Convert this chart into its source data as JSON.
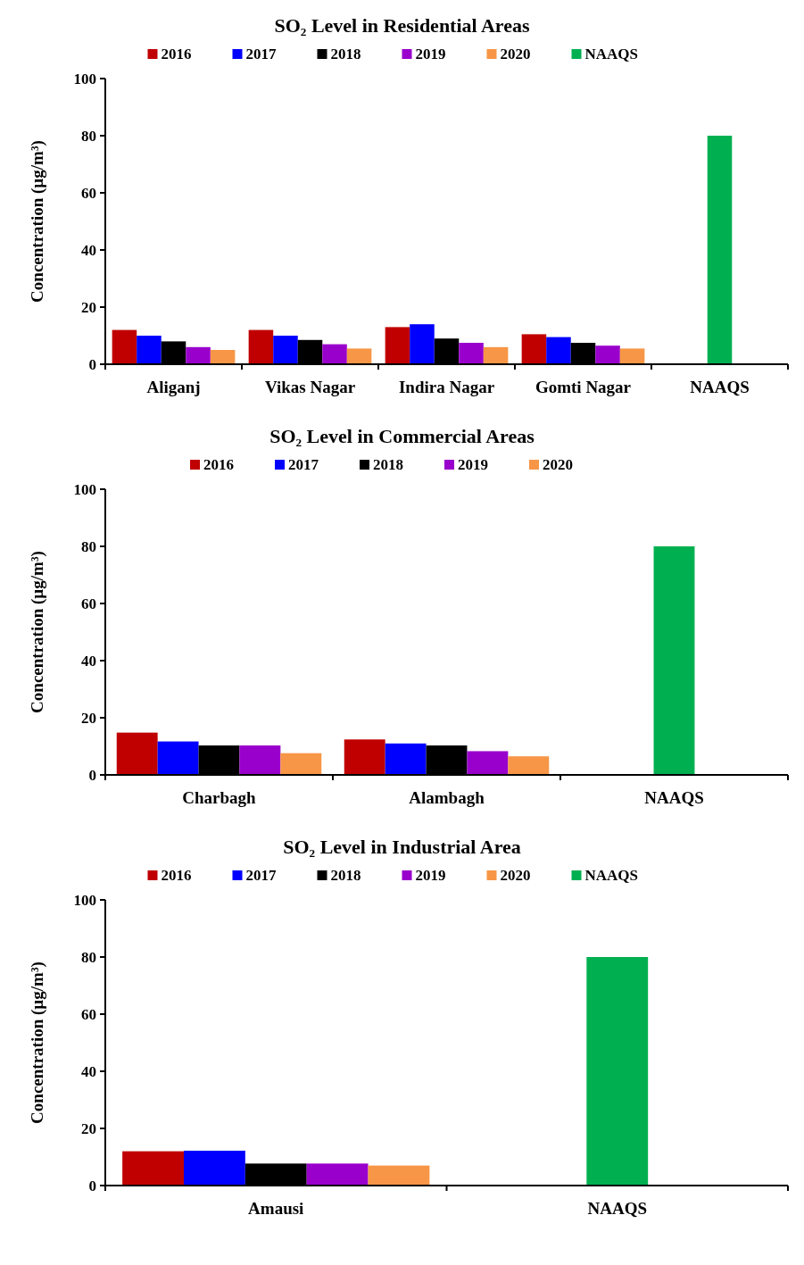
{
  "chart_data": [
    {
      "type": "bar",
      "title": "SO₂ Level in Residential Areas",
      "ylabel": "Concentration (µg/m³)",
      "categories": [
        "Aliganj",
        "Vikas Nagar",
        "Indira Nagar",
        "Gomti Nagar",
        "NAAQS"
      ],
      "ylim": [
        0,
        100
      ],
      "yticks": [
        0,
        20,
        40,
        60,
        80,
        100
      ],
      "legend": "top",
      "grid": false,
      "series": [
        {
          "name": "2016",
          "color": "#c00000",
          "values": [
            12,
            12,
            13,
            10.5,
            null
          ]
        },
        {
          "name": "2017",
          "color": "#0000ff",
          "values": [
            10,
            10,
            14,
            9.5,
            null
          ]
        },
        {
          "name": "2018",
          "color": "#000000",
          "values": [
            8,
            8.5,
            9,
            7.5,
            null
          ]
        },
        {
          "name": "2019",
          "color": "#9900cc",
          "values": [
            6,
            7,
            7.5,
            6.5,
            null
          ]
        },
        {
          "name": "2020",
          "color": "#f79646",
          "values": [
            5,
            5.5,
            6,
            5.5,
            null
          ]
        },
        {
          "name": "NAAQS",
          "color": "#00b050",
          "values": [
            null,
            null,
            null,
            null,
            80
          ]
        }
      ]
    },
    {
      "type": "bar",
      "title": "SO₂ Level in Commercial Areas",
      "ylabel": "Concentration (µg/m³)",
      "categories": [
        "Charbagh",
        "Alambagh",
        "NAAQS"
      ],
      "ylim": [
        0,
        100
      ],
      "yticks": [
        0,
        20,
        40,
        60,
        80,
        100
      ],
      "legend": "top",
      "grid": false,
      "series": [
        {
          "name": "2016",
          "color": "#c00000",
          "values": [
            14.8,
            12.4,
            null
          ]
        },
        {
          "name": "2017",
          "color": "#0000ff",
          "values": [
            11.7,
            11,
            null
          ]
        },
        {
          "name": "2018",
          "color": "#000000",
          "values": [
            10.3,
            10.3,
            null
          ]
        },
        {
          "name": "2019",
          "color": "#9900cc",
          "values": [
            10.3,
            8.3,
            null
          ]
        },
        {
          "name": "2020",
          "color": "#f79646",
          "values": [
            7.6,
            6.5,
            null
          ]
        },
        {
          "color": "#00b050",
          "values": [
            null,
            null,
            80
          ]
        }
      ]
    },
    {
      "type": "bar",
      "title": "SO₂ Level in Industrial Area",
      "ylabel": "Concentration (µg/m³)",
      "categories": [
        "Amausi",
        "NAAQS"
      ],
      "ylim": [
        0,
        100
      ],
      "yticks": [
        0,
        20,
        40,
        60,
        80,
        100
      ],
      "legend": "top",
      "grid": false,
      "series": [
        {
          "name": "2016",
          "color": "#c00000",
          "values": [
            12,
            null
          ]
        },
        {
          "name": "2017",
          "color": "#0000ff",
          "values": [
            12.2,
            null
          ]
        },
        {
          "name": "2018",
          "color": "#000000",
          "values": [
            7.7,
            null
          ]
        },
        {
          "name": "2019",
          "color": "#9900cc",
          "values": [
            7.7,
            null
          ]
        },
        {
          "name": "2020",
          "color": "#f79646",
          "values": [
            7,
            null
          ]
        },
        {
          "name": "NAAQS",
          "color": "#00b050",
          "values": [
            null,
            80
          ]
        }
      ]
    }
  ]
}
